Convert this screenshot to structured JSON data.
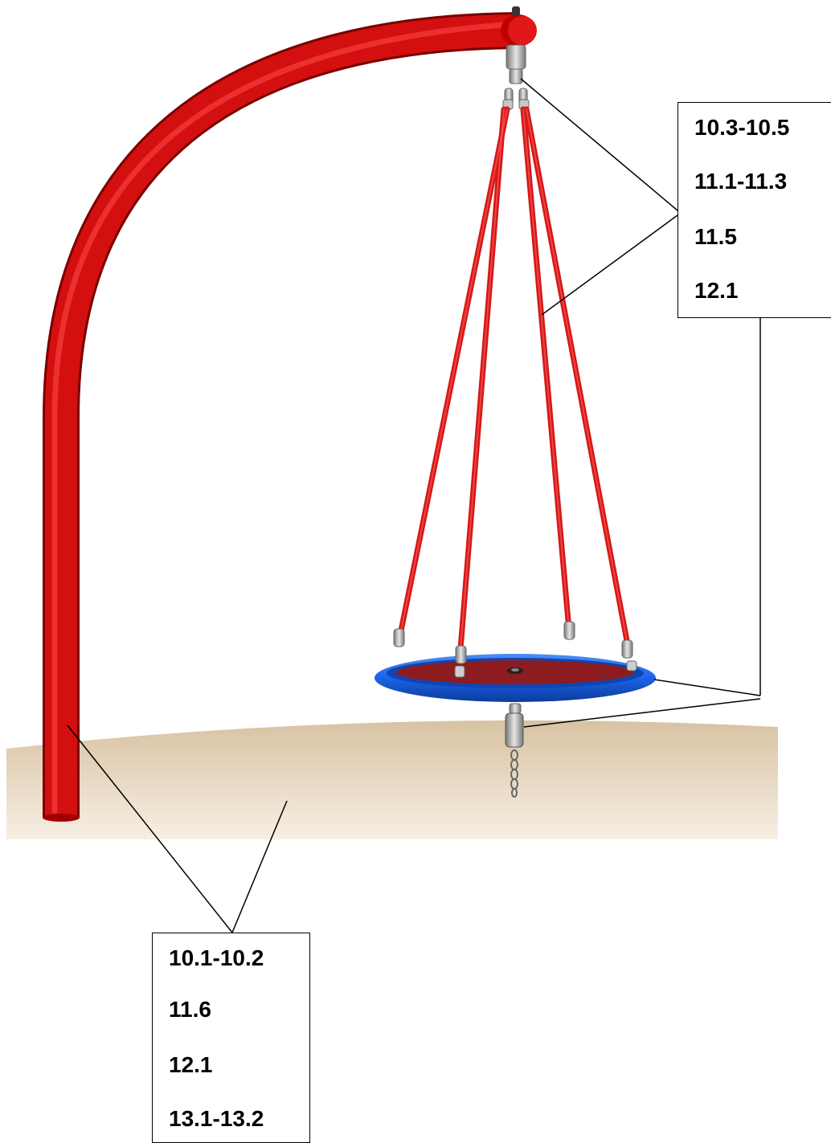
{
  "colors": {
    "frame_red": "#d40f0f",
    "rope_red": "#d51818",
    "seat_rim_blue": "#1b63e8",
    "seat_center_red": "#8c1c1f",
    "ground_sand": "#e9dac3",
    "hardware_grey": "#9a9a9a",
    "leader_line": "#000000"
  },
  "callouts": {
    "top": {
      "items": [
        "10.3-10.5",
        "11.1-11.3",
        "11.5",
        "12.1"
      ]
    },
    "bottom": {
      "items": [
        "10.1-10.2",
        "11.6",
        "12.1",
        "13.1-13.2"
      ]
    }
  },
  "icons": [
    "swing-frame-icon",
    "nest-seat-icon",
    "chain-icon",
    "ground-surface-icon"
  ]
}
